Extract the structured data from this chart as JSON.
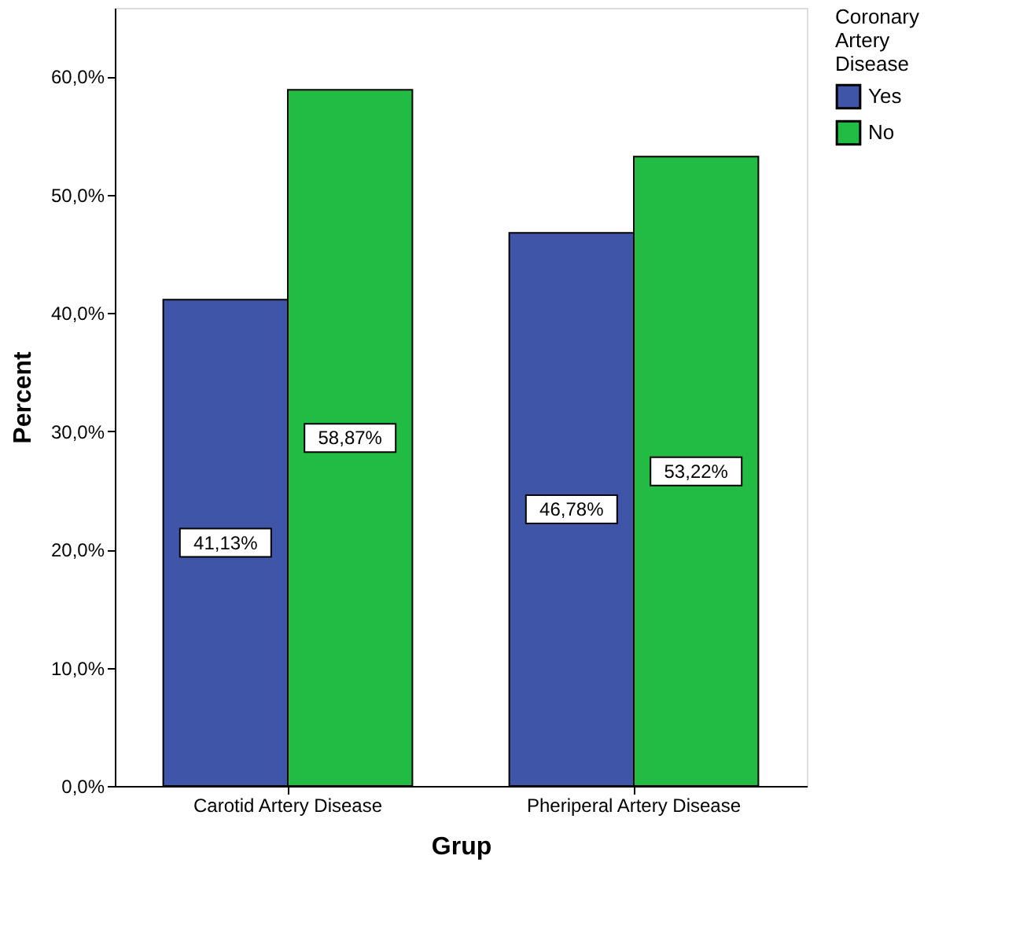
{
  "chart_data": {
    "type": "bar",
    "xlabel": "Grup",
    "ylabel": "Percent",
    "legend_title": "Coronary Artery Disease",
    "categories": [
      "Carotid Artery Disease",
      "Pheriperal Artery Disease"
    ],
    "series": [
      {
        "name": "Yes",
        "color": "#3f55a8",
        "values": [
          41.13,
          46.78
        ],
        "value_labels": [
          "41,13%",
          "46,78%"
        ]
      },
      {
        "name": "No",
        "color": "#22bb44",
        "values": [
          58.87,
          53.22
        ],
        "value_labels": [
          "58,87%",
          "53,22%"
        ]
      }
    ],
    "ylim": [
      0,
      65.8
    ],
    "yticks": [
      {
        "value": 0,
        "label": "0,0%"
      },
      {
        "value": 10,
        "label": "10,0%"
      },
      {
        "value": 20,
        "label": "20,0%"
      },
      {
        "value": 30,
        "label": "30,0%"
      },
      {
        "value": 40,
        "label": "40,0%"
      },
      {
        "value": 50,
        "label": "50,0%"
      },
      {
        "value": 60,
        "label": "60,0%"
      }
    ],
    "grid": false,
    "legend": "top right"
  }
}
